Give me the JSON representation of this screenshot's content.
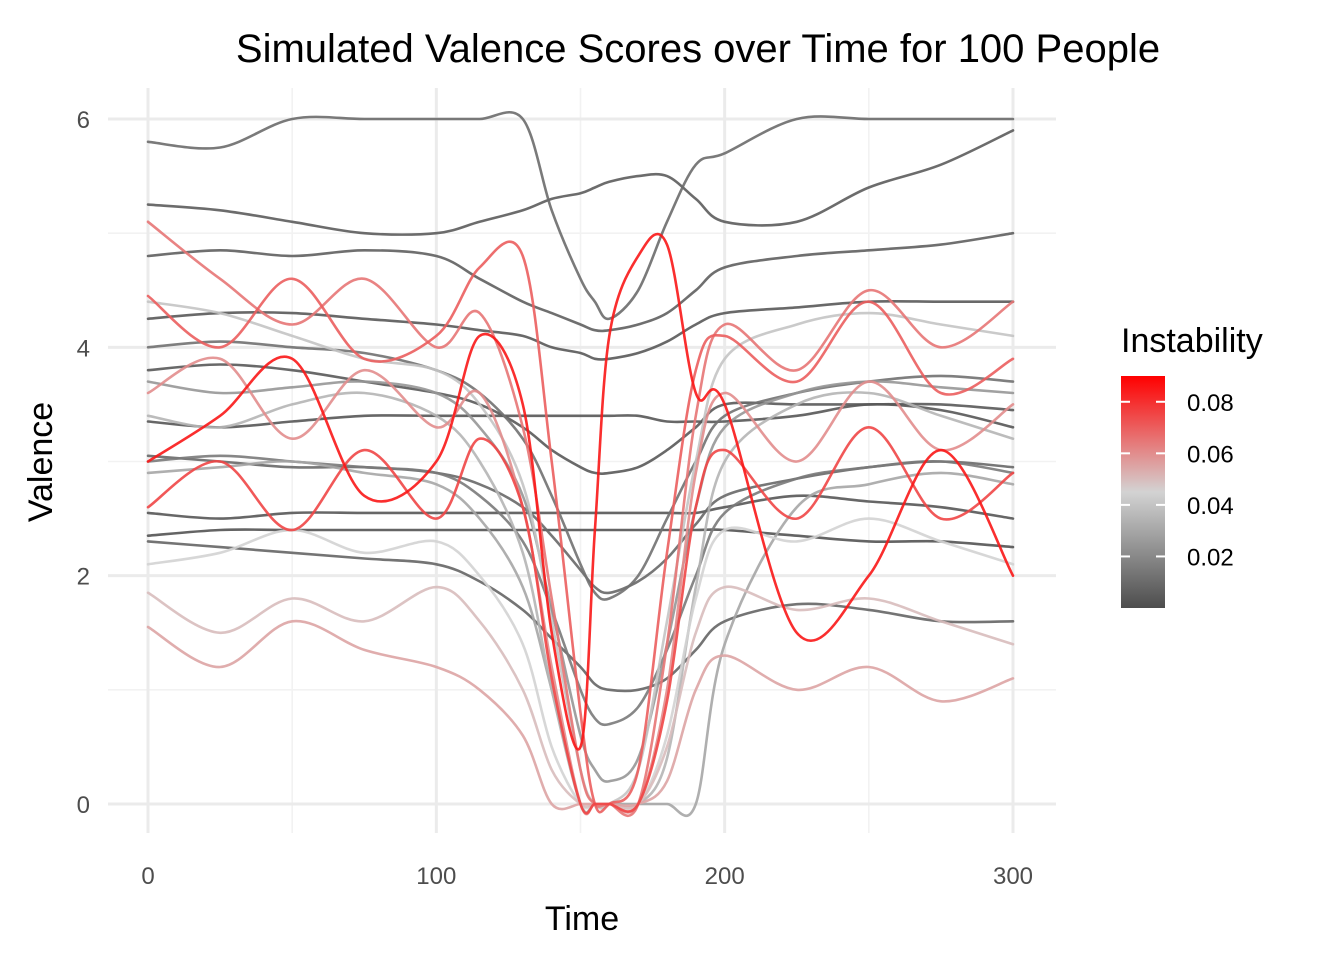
{
  "chart_data": {
    "type": "line",
    "title": "Simulated Valence Scores over Time for 100 People",
    "xlabel": "Time",
    "ylabel": "Valence",
    "xlim": [
      0,
      300
    ],
    "ylim": [
      0,
      6
    ],
    "x_ticks": [
      0,
      100,
      200,
      300
    ],
    "y_ticks": [
      0,
      2,
      4,
      6
    ],
    "grid": true,
    "legend": {
      "title": "Instability",
      "placement": "right",
      "ticks": [
        "0.02",
        "0.04",
        "0.06",
        "0.08"
      ],
      "tick_values": [
        0.02,
        0.04,
        0.06,
        0.08
      ],
      "range": [
        0.0,
        0.09
      ],
      "gradient_colors": [
        "#4d4d4d",
        "#d3d3d3",
        "#ff0000"
      ]
    },
    "series_count": 100,
    "x": [
      0,
      25,
      50,
      75,
      100,
      115,
      130,
      140,
      150,
      155,
      160,
      170,
      180,
      190,
      200,
      225,
      250,
      275,
      300
    ],
    "series": [
      {
        "instability": 0.01,
        "values": [
          5.8,
          5.75,
          6.0,
          6.0,
          6.0,
          6.0,
          6.0,
          5.2,
          4.6,
          4.4,
          4.25,
          4.5,
          5.1,
          5.6,
          5.7,
          6.0,
          6.0,
          6.0,
          6.0
        ]
      },
      {
        "instability": 0.005,
        "values": [
          5.25,
          5.2,
          5.1,
          5.0,
          5.0,
          5.1,
          5.2,
          5.3,
          5.35,
          5.4,
          5.45,
          5.5,
          5.5,
          5.3,
          5.1,
          5.1,
          5.4,
          5.6,
          5.9
        ]
      },
      {
        "instability": 0.006,
        "values": [
          4.8,
          4.85,
          4.8,
          4.85,
          4.8,
          4.6,
          4.4,
          4.3,
          4.2,
          4.15,
          4.15,
          4.2,
          4.3,
          4.5,
          4.7,
          4.8,
          4.85,
          4.9,
          5.0
        ]
      },
      {
        "instability": 0.004,
        "values": [
          4.25,
          4.3,
          4.3,
          4.25,
          4.2,
          4.15,
          4.1,
          4.0,
          3.95,
          3.9,
          3.9,
          3.95,
          4.05,
          4.2,
          4.3,
          4.35,
          4.4,
          4.4,
          4.4
        ]
      },
      {
        "instability": 0.003,
        "values": [
          3.35,
          3.3,
          3.35,
          3.4,
          3.4,
          3.4,
          3.4,
          3.4,
          3.4,
          3.4,
          3.4,
          3.4,
          3.35,
          3.35,
          3.35,
          3.4,
          3.5,
          3.45,
          3.3
        ]
      },
      {
        "instability": 0.004,
        "values": [
          3.8,
          3.85,
          3.8,
          3.7,
          3.6,
          3.5,
          3.3,
          3.1,
          2.95,
          2.9,
          2.9,
          2.95,
          3.1,
          3.3,
          3.5,
          3.5,
          3.5,
          3.5,
          3.45
        ]
      },
      {
        "instability": 0.002,
        "values": [
          2.35,
          2.4,
          2.4,
          2.4,
          2.4,
          2.4,
          2.4,
          2.4,
          2.4,
          2.4,
          2.4,
          2.4,
          2.4,
          2.4,
          2.4,
          2.35,
          2.3,
          2.3,
          2.25
        ]
      },
      {
        "instability": 0.003,
        "values": [
          2.55,
          2.5,
          2.55,
          2.55,
          2.55,
          2.55,
          2.55,
          2.55,
          2.55,
          2.55,
          2.55,
          2.55,
          2.55,
          2.55,
          2.6,
          2.7,
          2.65,
          2.6,
          2.5
        ]
      },
      {
        "instability": 0.008,
        "values": [
          2.3,
          2.25,
          2.2,
          2.15,
          2.1,
          1.95,
          1.7,
          1.45,
          1.2,
          1.05,
          1.0,
          1.0,
          1.1,
          1.35,
          1.6,
          1.75,
          1.7,
          1.6,
          1.6
        ]
      },
      {
        "instability": 0.009,
        "values": [
          3.05,
          3.0,
          2.95,
          2.95,
          2.9,
          2.8,
          2.6,
          2.35,
          2.05,
          1.9,
          1.85,
          1.95,
          2.15,
          2.45,
          2.7,
          2.85,
          2.95,
          3.0,
          2.95
        ]
      },
      {
        "instability": 0.012,
        "values": [
          4.0,
          4.05,
          4.0,
          3.95,
          3.8,
          3.6,
          3.2,
          2.7,
          2.1,
          1.85,
          1.8,
          2.0,
          2.5,
          3.0,
          3.4,
          3.6,
          3.7,
          3.75,
          3.7
        ]
      },
      {
        "instability": 0.015,
        "values": [
          3.0,
          3.05,
          3.0,
          2.95,
          2.9,
          2.7,
          2.3,
          1.7,
          1.0,
          0.75,
          0.7,
          0.85,
          1.35,
          2.0,
          2.55,
          2.85,
          2.95,
          3.0,
          2.9
        ]
      },
      {
        "instability": 0.025,
        "values": [
          3.7,
          3.6,
          3.65,
          3.7,
          3.6,
          3.3,
          2.7,
          1.7,
          0.6,
          0.3,
          0.2,
          0.4,
          1.4,
          2.6,
          3.3,
          3.6,
          3.7,
          3.65,
          3.6
        ]
      },
      {
        "instability": 0.03,
        "values": [
          2.9,
          2.95,
          3.0,
          2.9,
          2.8,
          2.5,
          1.9,
          1.0,
          0.0,
          0.0,
          0.0,
          0.0,
          0.0,
          0.0,
          1.4,
          2.6,
          2.8,
          2.9,
          2.8
        ]
      },
      {
        "instability": 0.035,
        "values": [
          3.4,
          3.3,
          3.5,
          3.6,
          3.4,
          3.0,
          2.2,
          1.0,
          0.0,
          0.0,
          0.0,
          0.0,
          0.4,
          1.9,
          3.0,
          3.5,
          3.6,
          3.4,
          3.2
        ]
      },
      {
        "instability": 0.04,
        "values": [
          4.4,
          4.3,
          4.1,
          3.9,
          3.8,
          3.5,
          2.8,
          1.6,
          0.3,
          0.0,
          0.0,
          0.3,
          1.6,
          3.0,
          3.9,
          4.2,
          4.3,
          4.2,
          4.1
        ]
      },
      {
        "instability": 0.045,
        "values": [
          2.1,
          2.2,
          2.4,
          2.2,
          2.3,
          2.0,
          1.4,
          0.5,
          0.0,
          0.0,
          0.0,
          0.0,
          0.6,
          1.8,
          2.4,
          2.3,
          2.5,
          2.3,
          2.1
        ]
      },
      {
        "instability": 0.05,
        "values": [
          1.85,
          1.5,
          1.8,
          1.6,
          1.9,
          1.6,
          1.0,
          0.3,
          0.0,
          0.0,
          0.0,
          0.0,
          0.5,
          1.5,
          1.9,
          1.7,
          1.8,
          1.6,
          1.4
        ]
      },
      {
        "instability": 0.055,
        "values": [
          1.55,
          1.2,
          1.6,
          1.35,
          1.2,
          1.0,
          0.6,
          0.0,
          0.0,
          0.0,
          0.0,
          0.0,
          0.2,
          1.0,
          1.3,
          1.0,
          1.2,
          0.9,
          1.1
        ]
      },
      {
        "instability": 0.06,
        "values": [
          3.6,
          3.9,
          3.2,
          3.8,
          3.3,
          3.6,
          2.6,
          1.2,
          0.0,
          0.0,
          0.0,
          0.0,
          1.0,
          2.9,
          3.6,
          3.0,
          3.7,
          3.1,
          3.5
        ]
      },
      {
        "instability": 0.065,
        "values": [
          5.1,
          4.6,
          4.2,
          4.6,
          4.0,
          4.3,
          3.3,
          1.8,
          0.3,
          0.0,
          0.0,
          0.0,
          1.4,
          3.4,
          4.2,
          3.8,
          4.5,
          4.0,
          4.4
        ]
      },
      {
        "instability": 0.07,
        "values": [
          4.45,
          4.0,
          4.6,
          3.9,
          4.1,
          4.7,
          4.8,
          3.0,
          0.8,
          0.0,
          0.0,
          0.3,
          2.2,
          3.8,
          4.1,
          3.7,
          4.4,
          3.6,
          3.9
        ]
      },
      {
        "instability": 0.075,
        "values": [
          2.6,
          3.0,
          2.4,
          3.1,
          2.5,
          3.2,
          2.6,
          1.1,
          0.0,
          0.0,
          0.0,
          0.0,
          0.9,
          2.6,
          3.1,
          2.5,
          3.3,
          2.5,
          2.9
        ]
      },
      {
        "instability": 0.085,
        "values": [
          3.0,
          3.4,
          3.9,
          2.7,
          3.0,
          4.1,
          3.5,
          1.5,
          0.5,
          2.4,
          4.1,
          4.8,
          4.9,
          3.6,
          3.5,
          1.5,
          2.0,
          3.1,
          2.0
        ]
      }
    ]
  }
}
